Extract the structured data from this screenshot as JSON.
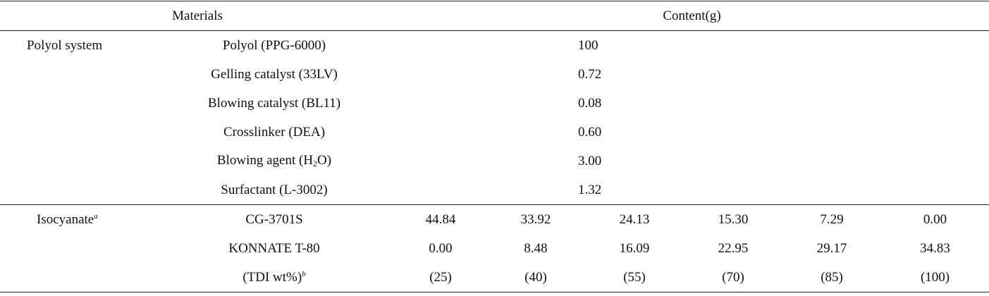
{
  "header": {
    "materials": "Materials",
    "content": "Content(g)"
  },
  "polyol": {
    "group": "Polyol system",
    "rows": [
      {
        "material": [
          "Polyol (PPG-6000)"
        ],
        "content": "100"
      },
      {
        "material": [
          "Gelling catalyst (33LV)"
        ],
        "content": "0.72"
      },
      {
        "material": [
          "Blowing catalyst (BL11)"
        ],
        "content": "0.08"
      },
      {
        "material": [
          "Crosslinker (DEA)"
        ],
        "content": "0.60"
      },
      {
        "material": [
          "Blowing agent (H",
          "2",
          "O)"
        ],
        "content": "3.00"
      },
      {
        "material": [
          "Surfactant (L-3002)"
        ],
        "content": "1.32"
      }
    ]
  },
  "isocyanate": {
    "group": "Isocyanate",
    "group_sup": "a",
    "rows": [
      {
        "material": "CG-3701S",
        "values": [
          "44.84",
          "33.92",
          "24.13",
          "15.30",
          "7.29",
          "0.00"
        ]
      },
      {
        "material": "KONNATE T-80",
        "values": [
          "0.00",
          "8.48",
          "16.09",
          "22.95",
          "29.17",
          "34.83"
        ]
      },
      {
        "material": "(TDI wt%)",
        "material_sup": "b",
        "values": [
          "(25)",
          "(40)",
          "(55)",
          "(70)",
          "(85)",
          "(100)"
        ]
      }
    ]
  }
}
